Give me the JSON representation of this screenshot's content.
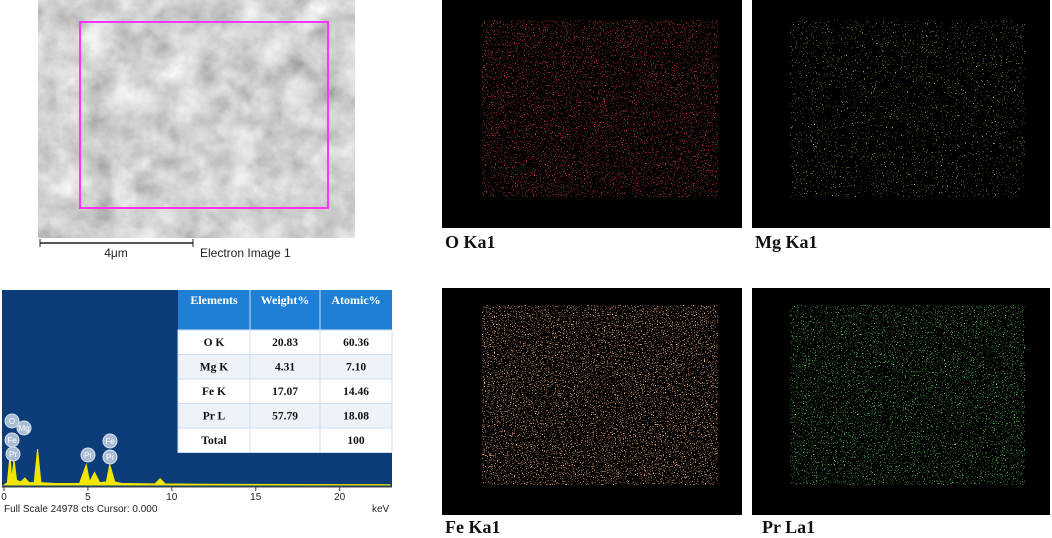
{
  "sem": {
    "scale_bar": "4μm",
    "caption": "Electron Image 1"
  },
  "chart_data": {
    "type": "area",
    "x": [
      0,
      0.2,
      0.36,
      0.45,
      0.6,
      0.75,
      1.0,
      1.25,
      1.5,
      1.8,
      2.0,
      2.2,
      3,
      4.5,
      4.9,
      5.1,
      5.4,
      5.7,
      6.1,
      6.3,
      6.6,
      7,
      9,
      9.3,
      9.6,
      12,
      15,
      20,
      23
    ],
    "values": [
      0,
      300,
      3800,
      800,
      3200,
      600,
      400,
      900,
      300,
      300,
      4600,
      300,
      200,
      200,
      2600,
      400,
      1600,
      300,
      400,
      2600,
      400,
      200,
      150,
      800,
      150,
      100,
      80,
      50,
      40
    ],
    "xlim": [
      0,
      23
    ],
    "ylim": [
      0,
      24978
    ],
    "xticks": [
      0,
      5,
      10,
      15,
      20
    ],
    "x_label": "keV",
    "footer": "Full Scale 24978 cts Cursor: 0.000",
    "peak_labels": [
      "O",
      "Mg",
      "Fe",
      "Pr",
      "Pr",
      "Fe",
      "Pr"
    ]
  },
  "table": {
    "columns": [
      "Elements",
      "Weight%",
      "Atomic%"
    ],
    "rows": [
      [
        "O K",
        "20.83",
        "60.36"
      ],
      [
        "Mg K",
        "4.31",
        "7.10"
      ],
      [
        "Fe K",
        "17.07",
        "14.46"
      ],
      [
        "Pr L",
        "57.79",
        "18.08"
      ]
    ],
    "total": {
      "label": "Total",
      "atomic": "100"
    }
  },
  "maps": [
    {
      "label": "O Ka1"
    },
    {
      "label": "Mg Ka1"
    },
    {
      "label": "Fe Ka1"
    },
    {
      "label": "Pr La1"
    }
  ]
}
